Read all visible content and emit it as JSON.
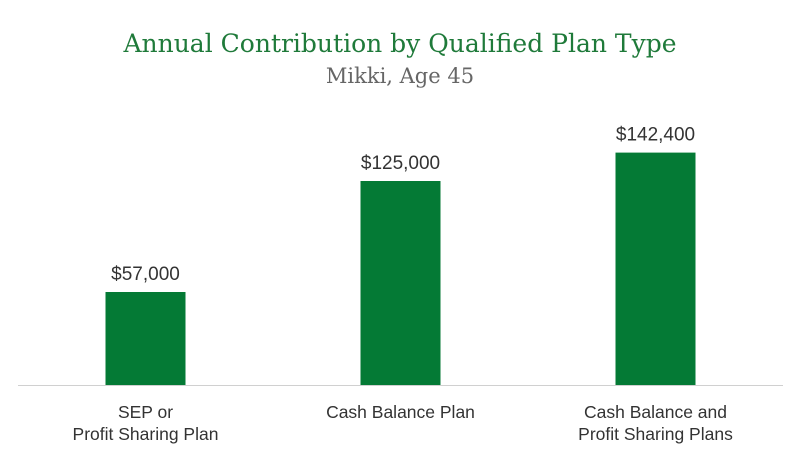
{
  "colors": {
    "bar": "#047a35",
    "title": "#1f7a3a",
    "subtitle": "#666666",
    "text": "#333333",
    "axis": "#d0d0d0"
  },
  "chart_data": {
    "type": "bar",
    "title": "Annual Contribution by Qualified Plan Type",
    "subtitle": "Mikki, Age 45",
    "categories": [
      [
        "SEP or",
        "Profit Sharing Plan"
      ],
      [
        "Cash Balance Plan"
      ],
      [
        "Cash Balance and",
        "Profit Sharing Plans"
      ]
    ],
    "values": [
      57000,
      125000,
      142400
    ],
    "data_labels": [
      "$57,000",
      "$125,000",
      "$142,400"
    ],
    "xlabel": "",
    "ylabel": "",
    "ylim": [
      0,
      163000
    ],
    "grid": false,
    "legend": "none"
  }
}
